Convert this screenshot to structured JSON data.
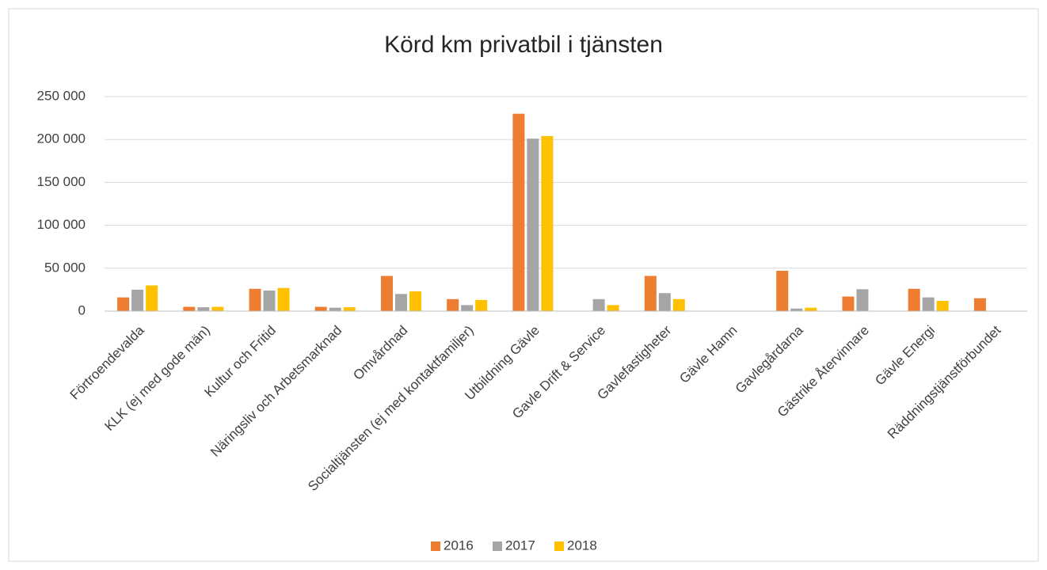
{
  "chart_data": {
    "type": "bar",
    "title": "Körd km privatbil i tjänsten",
    "categories": [
      "Förtroendevalda",
      "KLK (ej med gode män)",
      "Kultur och Fritid",
      "Näringsliv och Arbetsmarknad",
      "Omvårdnad",
      "Socialtjänsten (ej med kontaktfamiljer)",
      "Utbildning Gävle",
      "Gavle Drift & Service",
      "Gavlefastigheter",
      "Gävle Hamn",
      "Gavlegårdarna",
      "Gästrike Återvinnare",
      "Gävle Energi",
      "Räddningstjänstförbundet"
    ],
    "series": [
      {
        "name": "2016",
        "color": "#ed7d31",
        "values": [
          16000,
          5000,
          26000,
          5000,
          41000,
          14000,
          230000,
          null,
          41000,
          null,
          47000,
          17000,
          26000,
          15000
        ]
      },
      {
        "name": "2017",
        "color": "#a5a5a5",
        "values": [
          25000,
          4500,
          24000,
          4000,
          20000,
          7000,
          201000,
          14000,
          21000,
          null,
          3000,
          25500,
          16000,
          null
        ]
      },
      {
        "name": "2018",
        "color": "#ffc000",
        "values": [
          30000,
          5000,
          27000,
          4500,
          23000,
          13000,
          204000,
          7000,
          14000,
          null,
          4000,
          null,
          12000,
          null
        ]
      }
    ],
    "ylim": [
      0,
      250000
    ],
    "yticks": [
      0,
      {
        "value": 50000,
        "label": "50 000"
      },
      {
        "value": 100000,
        "label": "100 000"
      },
      {
        "value": 150000,
        "label": "150 000"
      },
      {
        "value": 200000,
        "label": "200 000"
      },
      {
        "value": 250000,
        "label": "250 000"
      }
    ],
    "grid": true,
    "legend": "bottom"
  }
}
